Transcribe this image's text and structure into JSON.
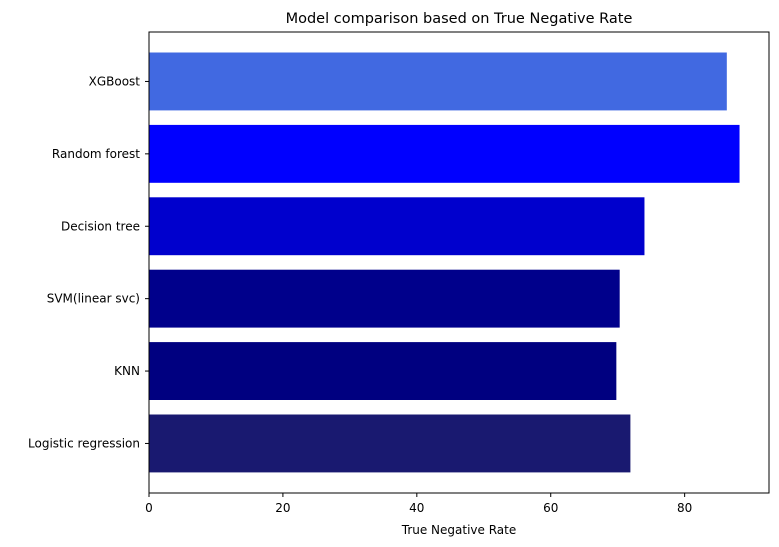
{
  "chart_data": {
    "type": "bar",
    "orientation": "horizontal",
    "title": "Model comparison based on True Negative Rate",
    "xlabel": "True Negative Rate",
    "ylabel": "",
    "categories": [
      "Logistic regression",
      "KNN",
      "SVM(linear svc)",
      "Decision tree",
      "Random forest",
      "XGBoost"
    ],
    "values": [
      71.9,
      69.8,
      70.3,
      74.0,
      88.2,
      86.3
    ],
    "colors": [
      "#191970",
      "#000080",
      "#00008b",
      "#0000cd",
      "#0000ff",
      "#4169e1"
    ],
    "xlim": [
      0,
      92.6
    ],
    "xticks": [
      0,
      20,
      40,
      60,
      80
    ],
    "grid": false,
    "legend": "none"
  }
}
